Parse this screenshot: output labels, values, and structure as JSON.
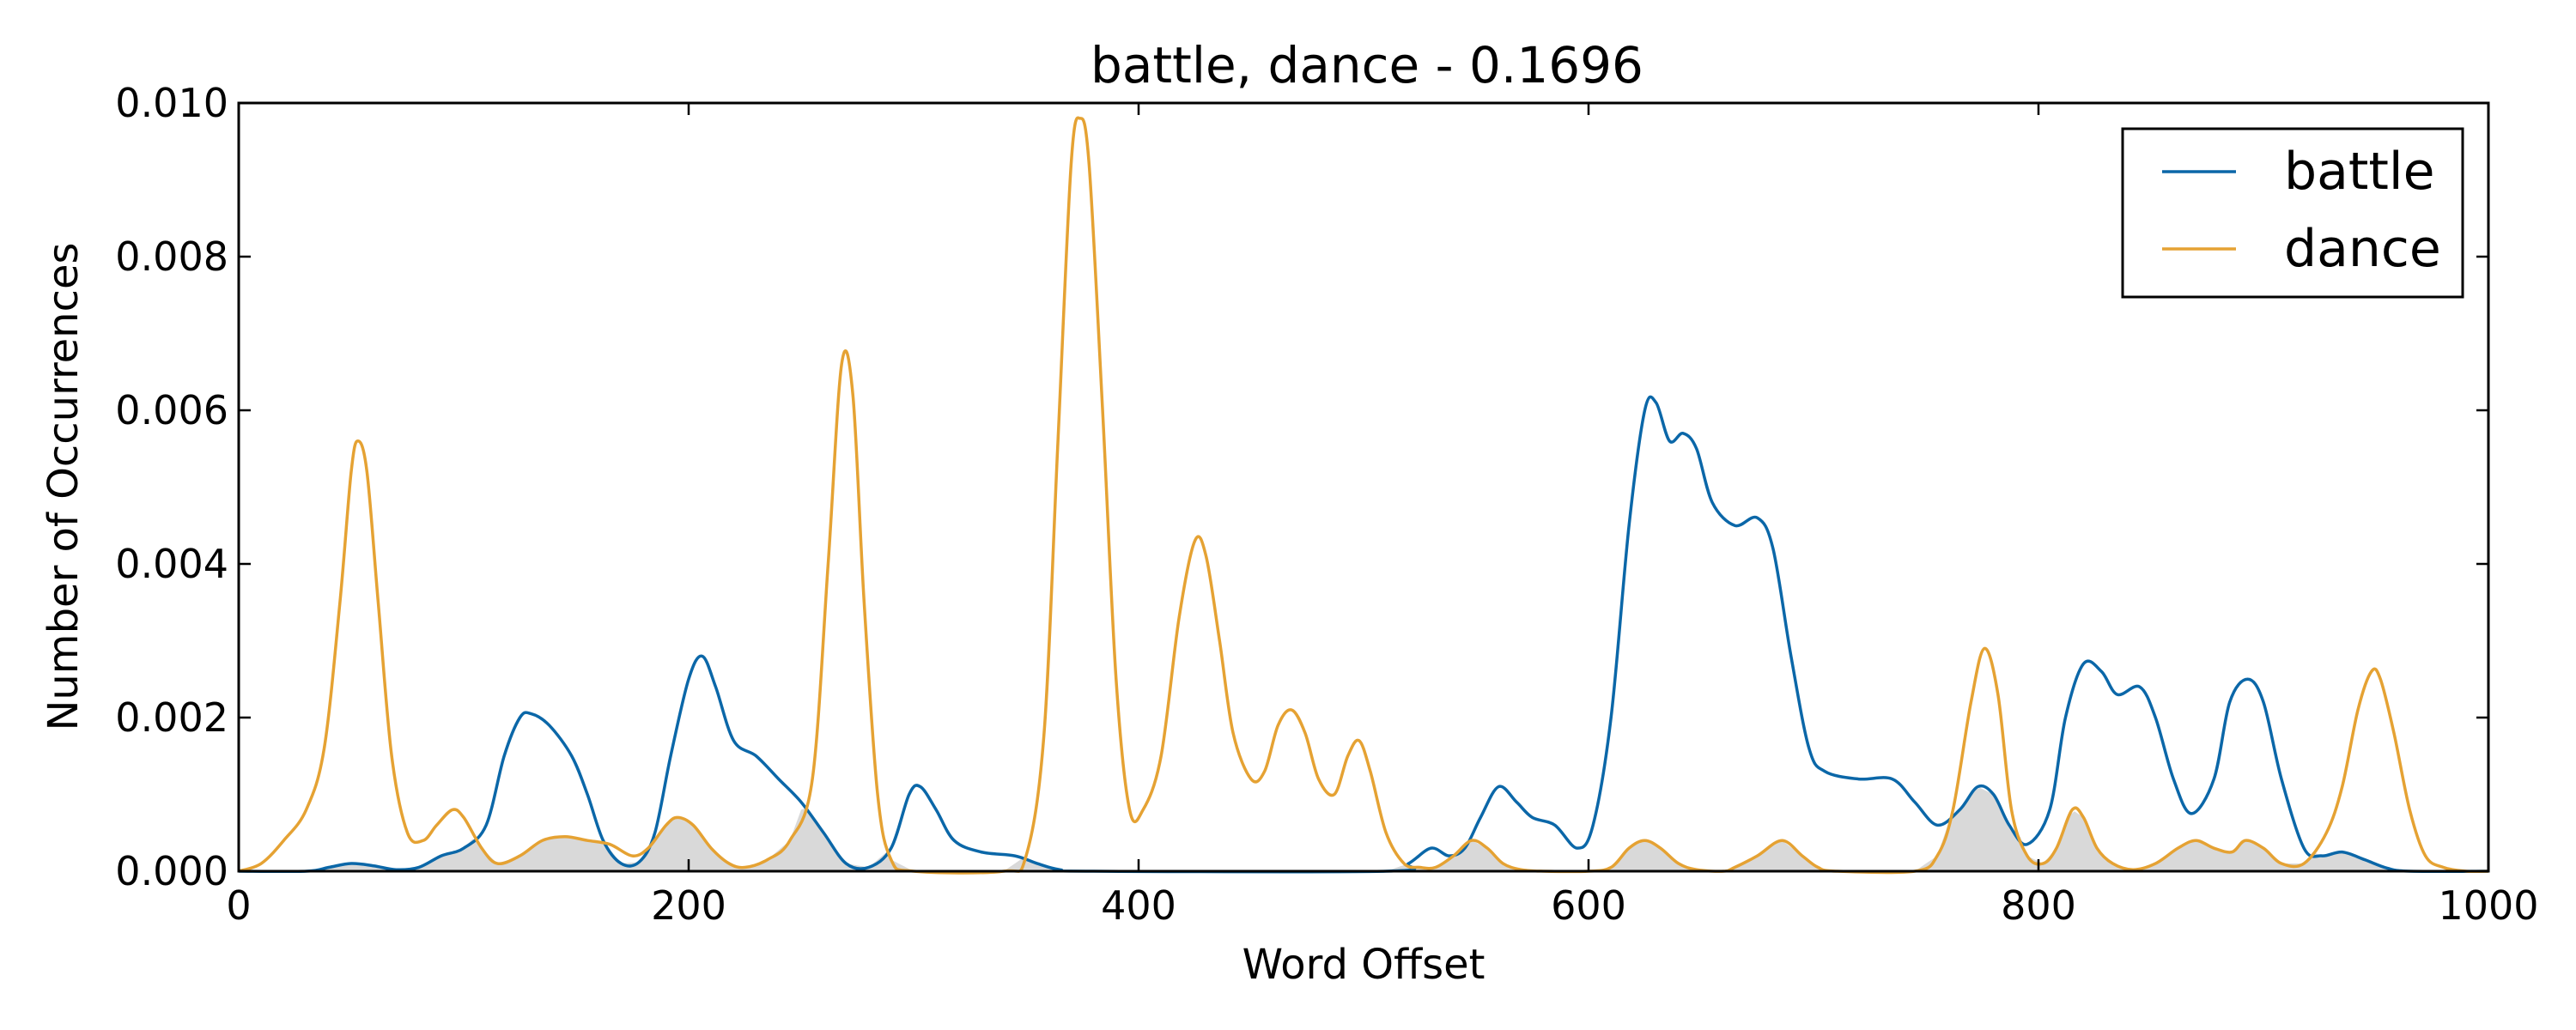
{
  "chart_data": {
    "type": "line",
    "title": "battle, dance - 0.1696",
    "xlabel": "Word Offset",
    "ylabel": "Number of Occurrences",
    "xlim": [
      0,
      1000
    ],
    "ylim": [
      0,
      0.01
    ],
    "x_ticks": [
      "0",
      "200",
      "400",
      "600",
      "800",
      "1000"
    ],
    "y_ticks": [
      "0.000",
      "0.002",
      "0.004",
      "0.006",
      "0.008",
      "0.010"
    ],
    "grid": false,
    "legend_position": "upper right",
    "overlap_fill_color": "#d9d9d9",
    "series": [
      {
        "name": "battle",
        "color": "#0b67a8",
        "points": [
          [
            0,
            0
          ],
          [
            30,
            0
          ],
          [
            40,
            5e-05
          ],
          [
            50,
            0.0001
          ],
          [
            60,
            7e-05
          ],
          [
            70,
            2e-05
          ],
          [
            80,
            5e-05
          ],
          [
            90,
            0.0002
          ],
          [
            100,
            0.0003
          ],
          [
            110,
            0.0006
          ],
          [
            118,
            0.0015
          ],
          [
            125,
            0.002
          ],
          [
            130,
            0.00205
          ],
          [
            138,
            0.0019
          ],
          [
            148,
            0.0015
          ],
          [
            155,
            0.001
          ],
          [
            162,
            0.0004
          ],
          [
            170,
            0.0001
          ],
          [
            178,
            0.00012
          ],
          [
            185,
            0.0005
          ],
          [
            192,
            0.0015
          ],
          [
            200,
            0.0025
          ],
          [
            206,
            0.0028
          ],
          [
            212,
            0.0024
          ],
          [
            220,
            0.0017
          ],
          [
            230,
            0.0015
          ],
          [
            240,
            0.0012
          ],
          [
            250,
            0.0009
          ],
          [
            260,
            0.0005
          ],
          [
            270,
            0.0001
          ],
          [
            280,
            5e-05
          ],
          [
            290,
            0.0003
          ],
          [
            298,
            0.001
          ],
          [
            303,
            0.0011
          ],
          [
            310,
            0.0008
          ],
          [
            318,
            0.0004
          ],
          [
            330,
            0.00025
          ],
          [
            345,
            0.0002
          ],
          [
            355,
            0.0001
          ],
          [
            365,
            2e-05
          ],
          [
            380,
            0
          ],
          [
            510,
            0
          ],
          [
            520,
            0.0001
          ],
          [
            530,
            0.0003
          ],
          [
            538,
            0.0002
          ],
          [
            545,
            0.0003
          ],
          [
            552,
            0.0007
          ],
          [
            560,
            0.0011
          ],
          [
            568,
            0.0009
          ],
          [
            575,
            0.0007
          ],
          [
            585,
            0.0006
          ],
          [
            595,
            0.0003
          ],
          [
            602,
            0.0006
          ],
          [
            610,
            0.002
          ],
          [
            618,
            0.0045
          ],
          [
            625,
            0.006
          ],
          [
            630,
            0.0061
          ],
          [
            636,
            0.0056
          ],
          [
            642,
            0.0057
          ],
          [
            648,
            0.0055
          ],
          [
            655,
            0.0048
          ],
          [
            665,
            0.0045
          ],
          [
            675,
            0.0046
          ],
          [
            682,
            0.0042
          ],
          [
            690,
            0.0028
          ],
          [
            698,
            0.0016
          ],
          [
            705,
            0.0013
          ],
          [
            720,
            0.0012
          ],
          [
            735,
            0.0012
          ],
          [
            745,
            0.0009
          ],
          [
            755,
            0.0006
          ],
          [
            765,
            0.0008
          ],
          [
            773,
            0.0011
          ],
          [
            780,
            0.001
          ],
          [
            787,
            0.0006
          ],
          [
            795,
            0.00035
          ],
          [
            805,
            0.0008
          ],
          [
            812,
            0.002
          ],
          [
            820,
            0.0027
          ],
          [
            828,
            0.0026
          ],
          [
            835,
            0.0023
          ],
          [
            845,
            0.0024
          ],
          [
            852,
            0.002
          ],
          [
            860,
            0.0012
          ],
          [
            868,
            0.00075
          ],
          [
            878,
            0.0012
          ],
          [
            885,
            0.0022
          ],
          [
            893,
            0.0025
          ],
          [
            900,
            0.0022
          ],
          [
            908,
            0.0012
          ],
          [
            918,
            0.0003
          ],
          [
            926,
            0.0002
          ],
          [
            935,
            0.00025
          ],
          [
            945,
            0.00015
          ],
          [
            955,
            4e-05
          ],
          [
            965,
            0
          ],
          [
            1000,
            0
          ]
        ]
      },
      {
        "name": "dance",
        "color": "#e5a233",
        "points": [
          [
            0,
            0
          ],
          [
            10,
            0.0001
          ],
          [
            20,
            0.0004
          ],
          [
            30,
            0.0008
          ],
          [
            38,
            0.0016
          ],
          [
            45,
            0.0035
          ],
          [
            50,
            0.0052
          ],
          [
            53,
            0.0056
          ],
          [
            57,
            0.0052
          ],
          [
            62,
            0.0035
          ],
          [
            68,
            0.0015
          ],
          [
            75,
            0.0005
          ],
          [
            82,
            0.0004
          ],
          [
            88,
            0.0006
          ],
          [
            95,
            0.0008
          ],
          [
            100,
            0.0007
          ],
          [
            108,
            0.0003
          ],
          [
            115,
            0.0001
          ],
          [
            125,
            0.0002
          ],
          [
            135,
            0.0004
          ],
          [
            145,
            0.00045
          ],
          [
            155,
            0.0004
          ],
          [
            165,
            0.00035
          ],
          [
            175,
            0.0002
          ],
          [
            182,
            0.0003
          ],
          [
            190,
            0.0006
          ],
          [
            195,
            0.0007
          ],
          [
            202,
            0.0006
          ],
          [
            210,
            0.0003
          ],
          [
            218,
            0.0001
          ],
          [
            225,
            5e-05
          ],
          [
            235,
            0.00015
          ],
          [
            245,
            0.0004
          ],
          [
            255,
            0.0012
          ],
          [
            262,
            0.004
          ],
          [
            268,
            0.0066
          ],
          [
            273,
            0.0062
          ],
          [
            278,
            0.0035
          ],
          [
            284,
            0.001
          ],
          [
            290,
            0.00015
          ],
          [
            300,
            0
          ],
          [
            340,
            0
          ],
          [
            350,
            0.0002
          ],
          [
            358,
            0.0018
          ],
          [
            364,
            0.0055
          ],
          [
            370,
            0.0092
          ],
          [
            374,
            0.0098
          ],
          [
            378,
            0.0092
          ],
          [
            384,
            0.006
          ],
          [
            390,
            0.0025
          ],
          [
            396,
            0.0008
          ],
          [
            402,
            0.0008
          ],
          [
            410,
            0.0015
          ],
          [
            418,
            0.0033
          ],
          [
            425,
            0.0043
          ],
          [
            430,
            0.0041
          ],
          [
            436,
            0.003
          ],
          [
            442,
            0.0018
          ],
          [
            450,
            0.0012
          ],
          [
            456,
            0.0013
          ],
          [
            462,
            0.0019
          ],
          [
            468,
            0.0021
          ],
          [
            474,
            0.0018
          ],
          [
            480,
            0.0012
          ],
          [
            487,
            0.001
          ],
          [
            493,
            0.0015
          ],
          [
            498,
            0.0017
          ],
          [
            503,
            0.0013
          ],
          [
            510,
            0.0005
          ],
          [
            518,
            0.0001
          ],
          [
            525,
            5e-05
          ],
          [
            532,
            5e-05
          ],
          [
            540,
            0.0002
          ],
          [
            548,
            0.0004
          ],
          [
            555,
            0.0003
          ],
          [
            562,
            0.0001
          ],
          [
            570,
            2e-05
          ],
          [
            580,
            0
          ],
          [
            600,
            0
          ],
          [
            610,
            5e-05
          ],
          [
            618,
            0.0003
          ],
          [
            625,
            0.0004
          ],
          [
            632,
            0.0003
          ],
          [
            640,
            0.0001
          ],
          [
            648,
            2e-05
          ],
          [
            660,
            0
          ],
          [
            665,
            5e-05
          ],
          [
            675,
            0.0002
          ],
          [
            686,
            0.0004
          ],
          [
            695,
            0.0002
          ],
          [
            702,
            5e-05
          ],
          [
            710,
            0
          ],
          [
            745,
            0
          ],
          [
            755,
            0.0002
          ],
          [
            762,
            0.0008
          ],
          [
            770,
            0.0022
          ],
          [
            776,
            0.0029
          ],
          [
            782,
            0.0023
          ],
          [
            788,
            0.0008
          ],
          [
            795,
            0.0002
          ],
          [
            802,
            0.0001
          ],
          [
            808,
            0.0003
          ],
          [
            815,
            0.0008
          ],
          [
            820,
            0.0007
          ],
          [
            826,
            0.0003
          ],
          [
            833,
            0.0001
          ],
          [
            842,
            2e-05
          ],
          [
            852,
            0.0001
          ],
          [
            862,
            0.0003
          ],
          [
            870,
            0.0004
          ],
          [
            878,
            0.0003
          ],
          [
            886,
            0.00025
          ],
          [
            892,
            0.0004
          ],
          [
            900,
            0.0003
          ],
          [
            908,
            0.0001
          ],
          [
            918,
            0.0001
          ],
          [
            928,
            0.0005
          ],
          [
            935,
            0.0011
          ],
          [
            942,
            0.0021
          ],
          [
            948,
            0.0026
          ],
          [
            952,
            0.0025
          ],
          [
            958,
            0.0018
          ],
          [
            965,
            0.0008
          ],
          [
            972,
            0.0002
          ],
          [
            980,
            5e-05
          ],
          [
            990,
            0
          ],
          [
            1000,
            0
          ]
        ]
      }
    ]
  }
}
